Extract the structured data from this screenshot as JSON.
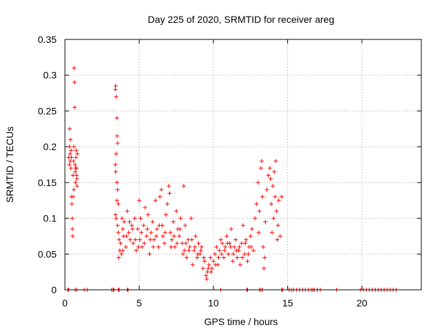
{
  "chart_data": {
    "type": "scatter",
    "title": "Day 225 of 2020, SRMTID for receiver areg",
    "xlabel": "GPS time / hours",
    "ylabel": "SRMTID / TECUs",
    "xlim": [
      0,
      24
    ],
    "ylim": [
      0,
      0.35
    ],
    "xticks": [
      0,
      5,
      10,
      15,
      20
    ],
    "xtick_labels": [
      "0",
      "5",
      "10",
      "15",
      "20"
    ],
    "yticks": [
      0,
      0.05,
      0.1,
      0.15,
      0.2,
      0.25,
      0.3,
      0.35
    ],
    "ytick_labels": [
      "0",
      "0.05",
      "0.1",
      "0.15",
      "0.2",
      "0.25",
      "0.3",
      "0.35"
    ],
    "grid": true,
    "legend": "none",
    "marker": "+",
    "marker_color": "#ff0000",
    "series": [
      {
        "name": "SRMTID",
        "points": [
          [
            0.25,
            0.185
          ],
          [
            0.3,
            0.2
          ],
          [
            0.32,
            0.225
          ],
          [
            0.35,
            0.19
          ],
          [
            0.38,
            0.21
          ],
          [
            0.4,
            0.17
          ],
          [
            0.42,
            0.195
          ],
          [
            0.45,
            0.13
          ],
          [
            0.47,
            0.12
          ],
          [
            0.5,
            0.1
          ],
          [
            0.5,
            0.085
          ],
          [
            0.52,
            0.075
          ],
          [
            0.55,
            0.16
          ],
          [
            0.58,
            0.18
          ],
          [
            0.6,
            0.2
          ],
          [
            0.62,
            0.31
          ],
          [
            0.64,
            0.29
          ],
          [
            0.66,
            0.255
          ],
          [
            0.68,
            0.175
          ],
          [
            0.7,
            0.165
          ],
          [
            0.72,
            0.15
          ],
          [
            0.74,
            0.185
          ],
          [
            0.76,
            0.195
          ],
          [
            0.78,
            0.17
          ],
          [
            0.8,
            0.155
          ],
          [
            0.82,
            0.145
          ],
          [
            0.84,
            0.19
          ],
          [
            0.3,
            0.175
          ],
          [
            0.36,
            0.18
          ],
          [
            0.44,
            0.185
          ],
          [
            0.56,
            0.13
          ],
          [
            0.6,
            0.14
          ],
          [
            0.72,
            0.17
          ],
          [
            0.78,
            0.16
          ],
          [
            3.4,
            0.28
          ],
          [
            3.42,
            0.285
          ],
          [
            3.45,
            0.27
          ],
          [
            3.5,
            0.24
          ],
          [
            3.52,
            0.215
          ],
          [
            3.55,
            0.205
          ],
          [
            3.45,
            0.19
          ],
          [
            3.4,
            0.175
          ],
          [
            3.42,
            0.165
          ],
          [
            3.5,
            0.15
          ],
          [
            3.55,
            0.14
          ],
          [
            3.5,
            0.125
          ],
          [
            3.6,
            0.12
          ],
          [
            3.4,
            0.105
          ],
          [
            3.45,
            0.1
          ],
          [
            3.55,
            0.09
          ],
          [
            3.6,
            0.08
          ],
          [
            3.65,
            0.07
          ],
          [
            3.7,
            0.055
          ],
          [
            3.62,
            0.045
          ],
          [
            3.75,
            0.065
          ],
          [
            3.8,
            0.05
          ],
          [
            3.85,
            0.1
          ],
          [
            3.9,
            0.085
          ],
          [
            3.95,
            0.075
          ],
          [
            4.0,
            0.095
          ],
          [
            4.1,
            0.06
          ],
          [
            4.2,
            0.11
          ],
          [
            4.3,
            0.08
          ],
          [
            4.4,
            0.07
          ],
          [
            4.5,
            0.09
          ],
          [
            4.6,
            0.065
          ],
          [
            4.7,
            0.1
          ],
          [
            4.8,
            0.055
          ],
          [
            4.9,
            0.085
          ],
          [
            5.0,
            0.125
          ],
          [
            5.05,
            0.07
          ],
          [
            5.1,
            0.1
          ],
          [
            5.2,
            0.06
          ],
          [
            5.3,
            0.09
          ],
          [
            5.4,
            0.115
          ],
          [
            5.5,
            0.075
          ],
          [
            5.6,
            0.105
          ],
          [
            5.7,
            0.05
          ],
          [
            5.8,
            0.08
          ],
          [
            5.9,
            0.095
          ],
          [
            6.0,
            0.07
          ],
          [
            6.1,
            0.125
          ],
          [
            6.2,
            0.085
          ],
          [
            6.3,
            0.06
          ],
          [
            6.4,
            0.13
          ],
          [
            6.5,
            0.14
          ],
          [
            6.55,
            0.09
          ],
          [
            6.6,
            0.075
          ],
          [
            6.7,
            0.065
          ],
          [
            6.8,
            0.105
          ],
          [
            6.9,
            0.12
          ],
          [
            7.0,
            0.145
          ],
          [
            7.05,
            0.135
          ],
          [
            7.1,
            0.08
          ],
          [
            7.2,
            0.07
          ],
          [
            7.3,
            0.095
          ],
          [
            7.4,
            0.06
          ],
          [
            7.5,
            0.11
          ],
          [
            7.6,
            0.085
          ],
          [
            7.7,
            0.075
          ],
          [
            7.8,
            0.1
          ],
          [
            7.9,
            0.065
          ],
          [
            8.0,
            0.145
          ],
          [
            8.05,
            0.055
          ],
          [
            8.1,
            0.09
          ],
          [
            8.2,
            0.045
          ],
          [
            8.3,
            0.07
          ],
          [
            8.4,
            0.06
          ],
          [
            8.5,
            0.1
          ],
          [
            8.6,
            0.035
          ],
          [
            8.7,
            0.055
          ],
          [
            8.8,
            0.075
          ],
          [
            8.9,
            0.045
          ],
          [
            9.0,
            0.065
          ],
          [
            9.1,
            0.05
          ],
          [
            9.2,
            0.06
          ],
          [
            9.3,
            0.03
          ],
          [
            9.4,
            0.04
          ],
          [
            9.5,
            0.02
          ],
          [
            9.55,
            0.015
          ],
          [
            9.6,
            0.025
          ],
          [
            9.7,
            0.035
          ],
          [
            9.8,
            0.045
          ],
          [
            9.9,
            0.03
          ],
          [
            10.0,
            0.04
          ],
          [
            10.1,
            0.05
          ],
          [
            10.2,
            0.06
          ],
          [
            10.3,
            0.035
          ],
          [
            10.4,
            0.055
          ],
          [
            10.5,
            0.07
          ],
          [
            10.6,
            0.065
          ],
          [
            10.7,
            0.045
          ],
          [
            10.8,
            0.06
          ],
          [
            10.9,
            0.075
          ],
          [
            11.0,
            0.05
          ],
          [
            11.1,
            0.065
          ],
          [
            11.2,
            0.085
          ],
          [
            11.3,
            0.04
          ],
          [
            11.4,
            0.06
          ],
          [
            11.5,
            0.07
          ],
          [
            11.6,
            0.045
          ],
          [
            11.7,
            0.055
          ],
          [
            11.8,
            0.035
          ],
          [
            11.9,
            0.065
          ],
          [
            12.0,
            0.09
          ],
          [
            12.1,
            0.05
          ],
          [
            12.2,
            0.07
          ],
          [
            12.3,
            0.04
          ],
          [
            12.4,
            0.06
          ],
          [
            12.5,
            0.075
          ],
          [
            12.6,
            0.085
          ],
          [
            12.7,
            0.055
          ],
          [
            12.8,
            0.1
          ],
          [
            12.9,
            0.12
          ],
          [
            13.0,
            0.15
          ],
          [
            13.05,
            0.08
          ],
          [
            13.1,
            0.11
          ],
          [
            13.2,
            0.17
          ],
          [
            13.25,
            0.18
          ],
          [
            13.3,
            0.13
          ],
          [
            13.35,
            0.06
          ],
          [
            13.4,
            0.03
          ],
          [
            13.45,
            0.045
          ],
          [
            13.5,
            0.095
          ],
          [
            13.6,
            0.14
          ],
          [
            13.7,
            0.16
          ],
          [
            13.8,
            0.17
          ],
          [
            13.85,
            0.155
          ],
          [
            13.9,
            0.12
          ],
          [
            13.95,
            0.08
          ],
          [
            14.0,
            0.145
          ],
          [
            14.05,
            0.1
          ],
          [
            14.1,
            0.165
          ],
          [
            14.15,
            0.13
          ],
          [
            14.2,
            0.18
          ],
          [
            14.25,
            0.11
          ],
          [
            14.3,
            0.07
          ],
          [
            14.35,
            0.09
          ],
          [
            14.4,
            0.125
          ],
          [
            14.5,
            0.075
          ],
          [
            14.6,
            0.13
          ],
          [
            3.9,
            0.055
          ],
          [
            4.15,
            0.075
          ],
          [
            4.35,
            0.095
          ],
          [
            4.55,
            0.085
          ],
          [
            4.75,
            0.07
          ],
          [
            4.95,
            0.06
          ],
          [
            5.15,
            0.08
          ],
          [
            5.35,
            0.065
          ],
          [
            5.55,
            0.085
          ],
          [
            5.75,
            0.07
          ],
          [
            5.95,
            0.06
          ],
          [
            6.15,
            0.075
          ],
          [
            6.35,
            0.09
          ],
          [
            6.75,
            0.08
          ],
          [
            7.15,
            0.06
          ],
          [
            7.35,
            0.075
          ],
          [
            7.55,
            0.065
          ],
          [
            7.75,
            0.085
          ],
          [
            7.95,
            0.05
          ],
          [
            8.15,
            0.065
          ],
          [
            8.35,
            0.055
          ],
          [
            8.55,
            0.07
          ],
          [
            8.75,
            0.06
          ],
          [
            8.95,
            0.05
          ],
          [
            9.15,
            0.055
          ],
          [
            9.35,
            0.045
          ],
          [
            9.65,
            0.03
          ],
          [
            9.85,
            0.025
          ],
          [
            10.15,
            0.035
          ],
          [
            10.35,
            0.045
          ],
          [
            10.55,
            0.05
          ],
          [
            10.75,
            0.055
          ],
          [
            10.95,
            0.065
          ],
          [
            11.15,
            0.06
          ],
          [
            11.35,
            0.05
          ],
          [
            11.55,
            0.055
          ],
          [
            11.75,
            0.06
          ],
          [
            11.95,
            0.045
          ],
          [
            12.15,
            0.065
          ],
          [
            12.35,
            0.05
          ],
          [
            12.55,
            0.06
          ],
          [
            0.2,
            0.0
          ],
          [
            0.25,
            0.0
          ],
          [
            0.7,
            0.0
          ],
          [
            0.8,
            0.0
          ],
          [
            1.3,
            0.0
          ],
          [
            1.5,
            0.0
          ],
          [
            3.15,
            0.0
          ],
          [
            3.25,
            0.0
          ],
          [
            3.3,
            0.0
          ],
          [
            3.6,
            0.0
          ],
          [
            3.65,
            0.0
          ],
          [
            4.2,
            0.0
          ],
          [
            4.25,
            0.0
          ],
          [
            10.5,
            0.0
          ],
          [
            12.25,
            0.0
          ],
          [
            12.3,
            0.0
          ],
          [
            13.1,
            0.0
          ],
          [
            13.2,
            0.0
          ],
          [
            13.3,
            0.0
          ],
          [
            14.6,
            0.0
          ],
          [
            14.65,
            0.0
          ],
          [
            15.1,
            0.0
          ],
          [
            15.25,
            0.0
          ],
          [
            15.4,
            0.0
          ],
          [
            15.6,
            0.0
          ],
          [
            15.8,
            0.0
          ],
          [
            16.0,
            0.0
          ],
          [
            16.2,
            0.0
          ],
          [
            16.4,
            0.0
          ],
          [
            16.6,
            0.0
          ],
          [
            16.7,
            0.0
          ],
          [
            16.8,
            0.0
          ],
          [
            17.0,
            0.0
          ],
          [
            17.2,
            0.0
          ],
          [
            18.3,
            0.0
          ],
          [
            19.9,
            0.0
          ],
          [
            20.1,
            0.0
          ],
          [
            20.3,
            0.0
          ],
          [
            20.5,
            0.0
          ],
          [
            20.7,
            0.0
          ],
          [
            20.9,
            0.0
          ],
          [
            21.1,
            0.0
          ],
          [
            21.3,
            0.0
          ],
          [
            21.5,
            0.0
          ],
          [
            21.7,
            0.0
          ],
          [
            21.9,
            0.0
          ],
          [
            22.1,
            0.0
          ],
          [
            22.3,
            0.0
          ]
        ]
      }
    ]
  }
}
